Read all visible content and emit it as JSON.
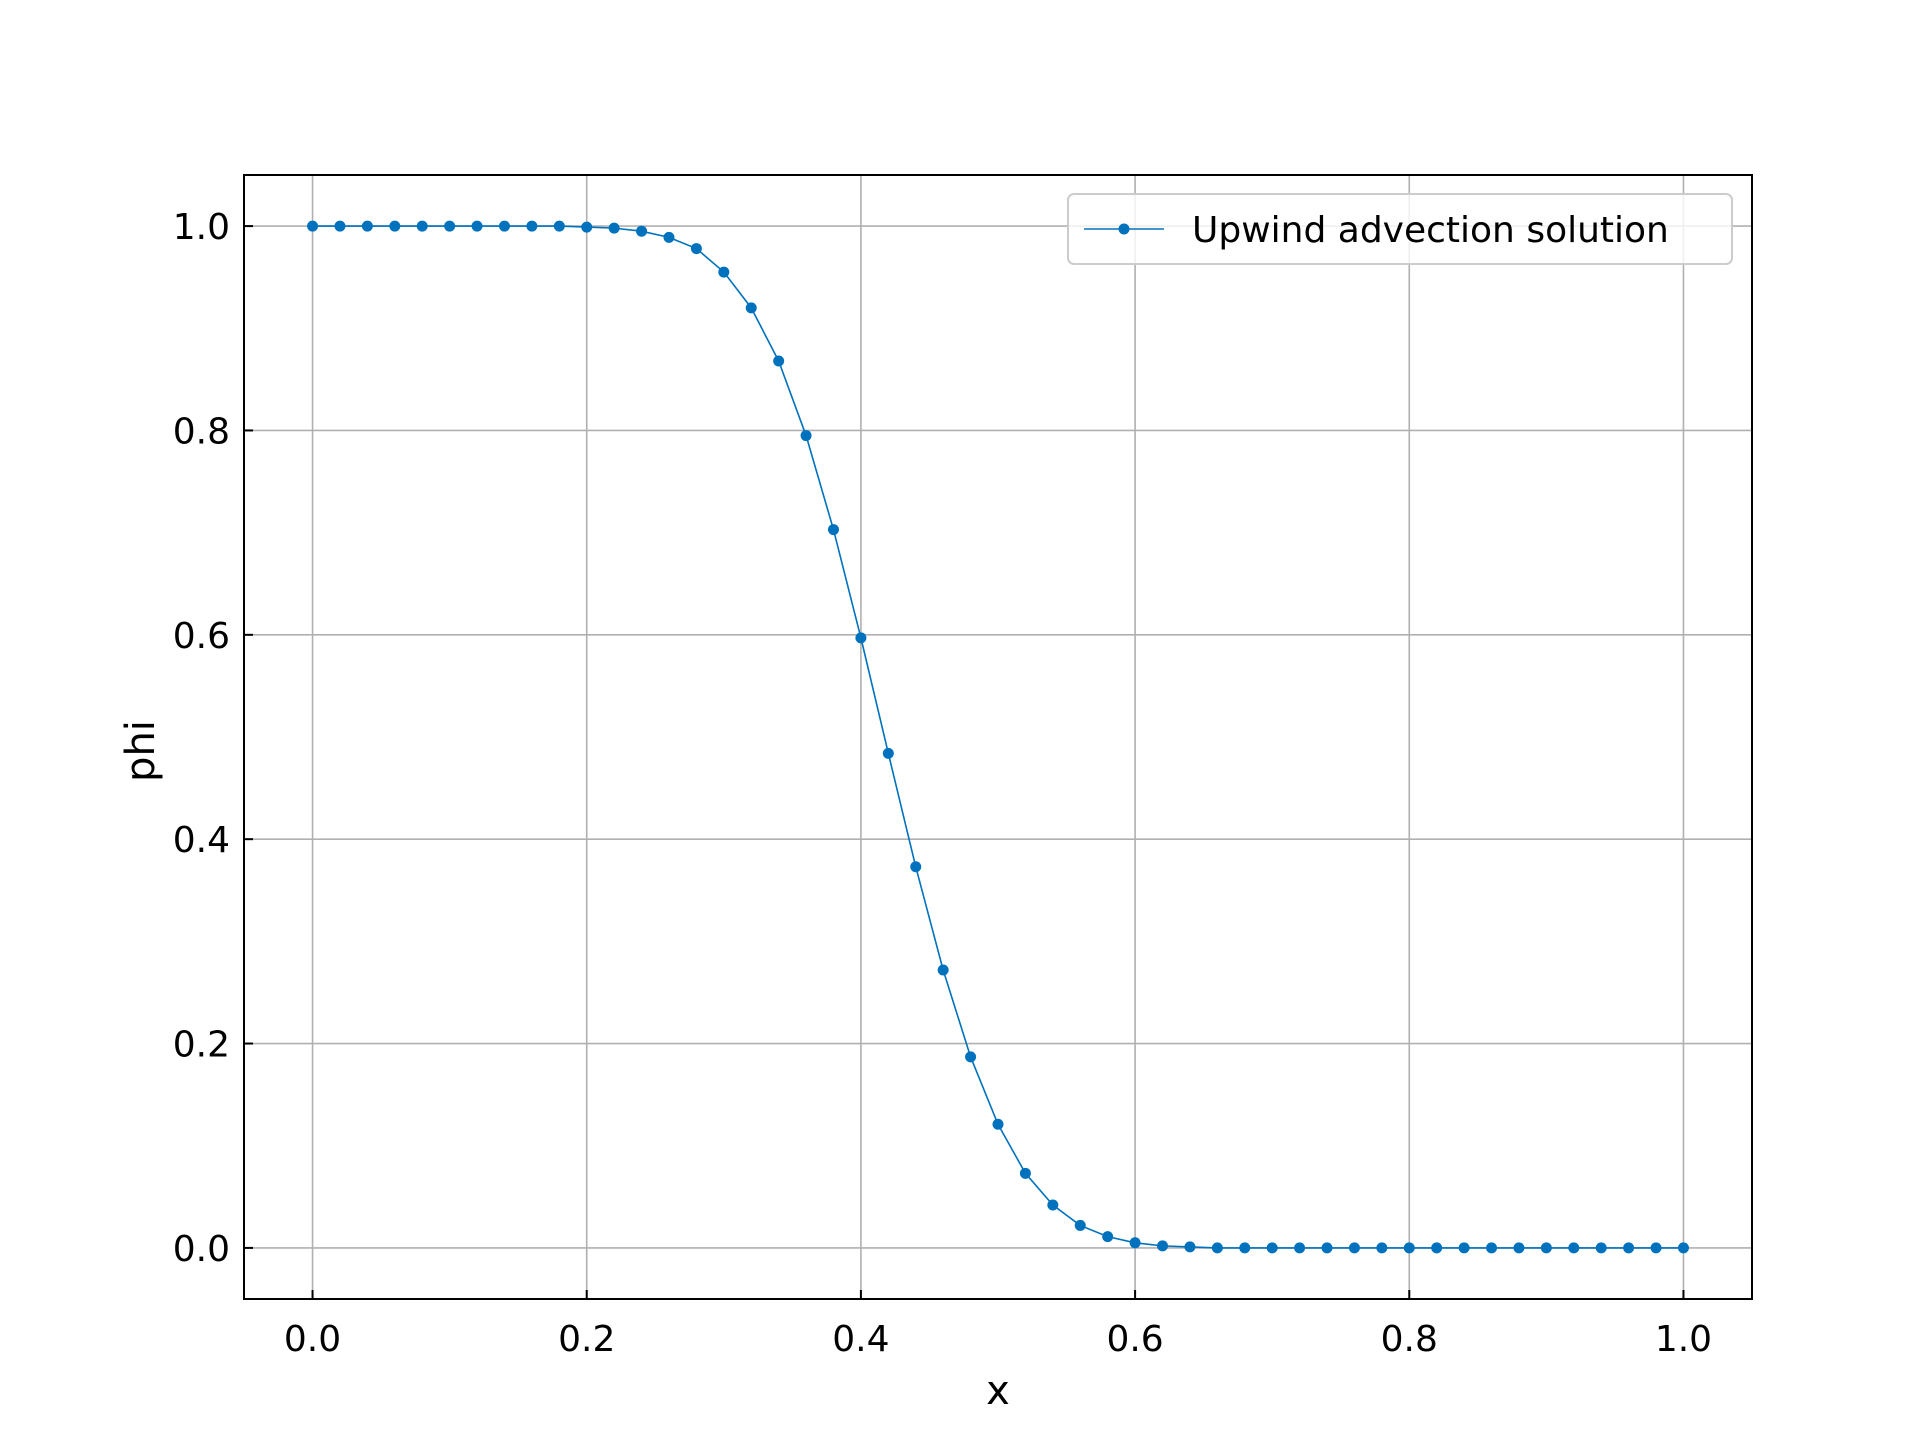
{
  "chart_data": {
    "type": "line",
    "title": "",
    "xlabel": "x",
    "ylabel": "phi",
    "xlim": [
      -0.05,
      1.05
    ],
    "ylim": [
      -0.05,
      1.05
    ],
    "xticks": [
      0.0,
      0.2,
      0.4,
      0.6,
      0.8,
      1.0
    ],
    "xtick_labels": [
      "0.0",
      "0.2",
      "0.4",
      "0.6",
      "0.8",
      "1.0"
    ],
    "yticks": [
      0.0,
      0.2,
      0.4,
      0.6,
      0.8,
      1.0
    ],
    "ytick_labels": [
      "0.0",
      "0.2",
      "0.4",
      "0.6",
      "0.8",
      "1.0"
    ],
    "grid": true,
    "legend_position": "top-right",
    "series": [
      {
        "name": "Upwind advection solution",
        "color": "#0072bd",
        "marker": "circle",
        "x": [
          0.0,
          0.02,
          0.04,
          0.06,
          0.08,
          0.1,
          0.12,
          0.14,
          0.16,
          0.18,
          0.2,
          0.22,
          0.24,
          0.26,
          0.28,
          0.3,
          0.32,
          0.34,
          0.36,
          0.38,
          0.4,
          0.42,
          0.44,
          0.46,
          0.48,
          0.5,
          0.52,
          0.54,
          0.56,
          0.58,
          0.6,
          0.62,
          0.64,
          0.66,
          0.68,
          0.7,
          0.72,
          0.74,
          0.76,
          0.78,
          0.8,
          0.82,
          0.84,
          0.86,
          0.88,
          0.9,
          0.92,
          0.94,
          0.96,
          0.98,
          1.0
        ],
        "y": [
          1.0,
          1.0,
          1.0,
          1.0,
          1.0,
          1.0,
          1.0,
          1.0,
          1.0,
          1.0,
          0.999,
          0.998,
          0.995,
          0.989,
          0.978,
          0.955,
          0.92,
          0.868,
          0.795,
          0.703,
          0.597,
          0.484,
          0.373,
          0.272,
          0.187,
          0.121,
          0.073,
          0.042,
          0.022,
          0.011,
          0.005,
          0.002,
          0.001,
          0.0,
          0.0,
          0.0,
          0.0,
          0.0,
          0.0,
          0.0,
          0.0,
          0.0,
          0.0,
          0.0,
          0.0,
          0.0,
          0.0,
          0.0,
          0.0,
          0.0,
          0.0
        ]
      }
    ]
  }
}
